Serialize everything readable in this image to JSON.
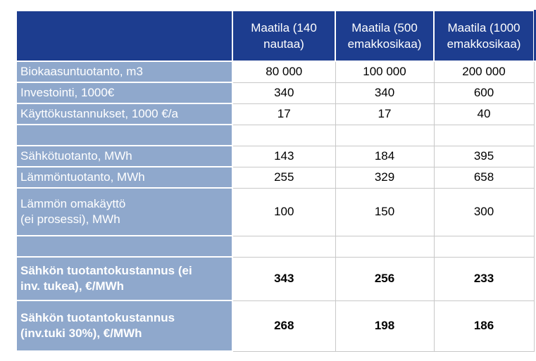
{
  "header": {
    "columns": [
      [
        "Maatila (140",
        "nautaa)"
      ],
      [
        "Maatila (500",
        "emakkosikaa)"
      ],
      [
        "Maatila (1000",
        "emakkosikaa)"
      ]
    ]
  },
  "rows": [
    {
      "label": [
        "Biokaasuntuotanto, m3"
      ],
      "values": [
        "80 000",
        "100 000",
        "200 000"
      ],
      "bold": false
    },
    {
      "label": [
        "Investointi, 1000€"
      ],
      "values": [
        "340",
        "340",
        "600"
      ],
      "bold": false
    },
    {
      "label": [
        "Käyttökustannukset, 1000 €/a"
      ],
      "values": [
        "17",
        "17",
        "40"
      ],
      "bold": false
    },
    {
      "label": [
        ""
      ],
      "values": [
        "",
        "",
        ""
      ],
      "bold": false
    },
    {
      "label": [
        "Sähkötuotanto, MWh"
      ],
      "values": [
        "143",
        "184",
        "395"
      ],
      "bold": false
    },
    {
      "label": [
        "Lämmöntuotanto, MWh"
      ],
      "values": [
        "255",
        "329",
        "658"
      ],
      "bold": false
    },
    {
      "label": [
        "Lämmön omakäyttö",
        "(ei prosessi), MWh"
      ],
      "values": [
        "100",
        "150",
        "300"
      ],
      "bold": false
    },
    {
      "label": [
        ""
      ],
      "values": [
        "",
        "",
        ""
      ],
      "bold": false
    },
    {
      "label": [
        "Sähkön tuotantokustannus (ei",
        "inv. tukea), €/MWh"
      ],
      "values": [
        "343",
        "256",
        "233"
      ],
      "bold": true
    },
    {
      "label": [
        "Sähkön tuotantokustannus",
        "(inv.tuki 30%), €/MWh"
      ],
      "values": [
        "268",
        "198",
        "186"
      ],
      "bold": true
    }
  ]
}
